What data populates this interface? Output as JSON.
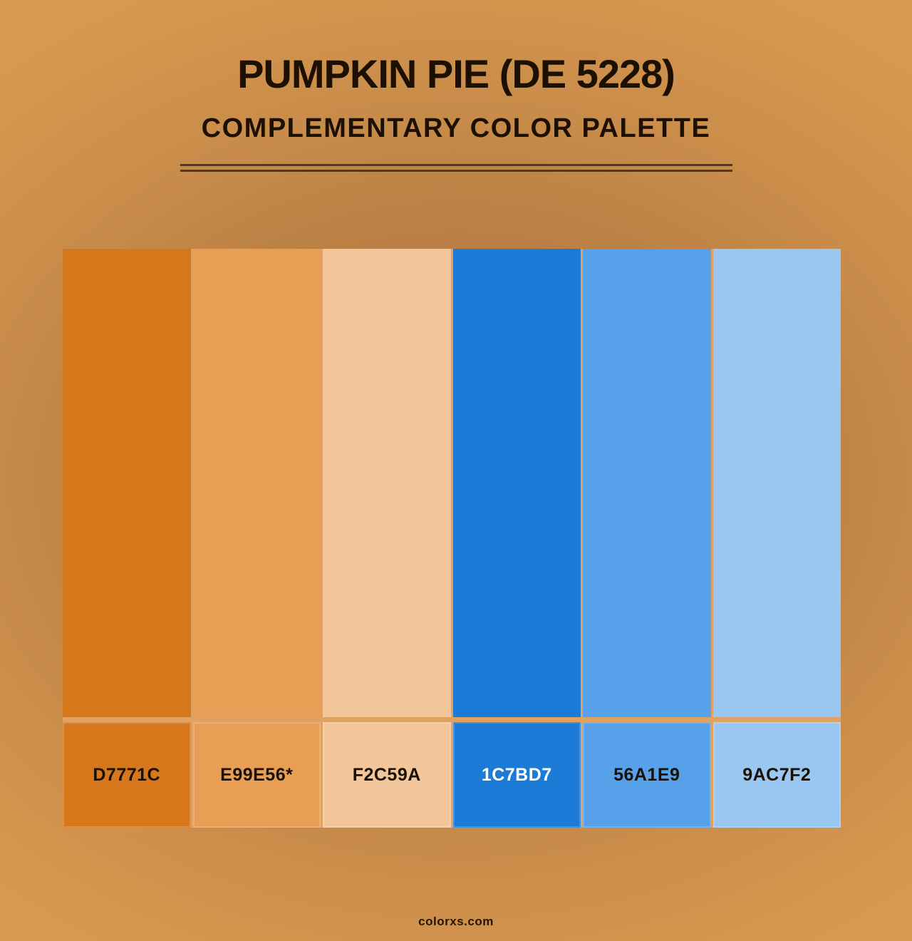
{
  "header": {
    "title": "PUMPKIN PIE (DE 5228)",
    "subtitle": "COMPLEMENTARY COLOR PALETTE"
  },
  "palette": {
    "name": "Pumpkin Pie (DE 5228)",
    "scheme": "Complementary",
    "swatches": [
      {
        "hex": "#D7771C",
        "label": "D7771C",
        "label_color": "#1a1105"
      },
      {
        "hex": "#E99E56",
        "label": "E99E56*",
        "label_color": "#1a1105"
      },
      {
        "hex": "#F2C59A",
        "label": "F2C59A",
        "label_color": "#1a1105"
      },
      {
        "hex": "#1C7BD7",
        "label": "1C7BD7",
        "label_color": "#ffffff"
      },
      {
        "hex": "#56A1E9",
        "label": "56A1E9",
        "label_color": "#1a1105"
      },
      {
        "hex": "#9AC7F2",
        "label": "9AC7F2",
        "label_color": "#1a1105"
      }
    ]
  },
  "footer": {
    "watermark": "colorxs.com"
  },
  "theme": {
    "bg_center": "#a7713b",
    "bg_edge": "#d9994f",
    "title_color": "#1b1002",
    "divider_color": "#54391a",
    "grid_gap_color": "#dfa263",
    "watermark_color": "#241505"
  }
}
